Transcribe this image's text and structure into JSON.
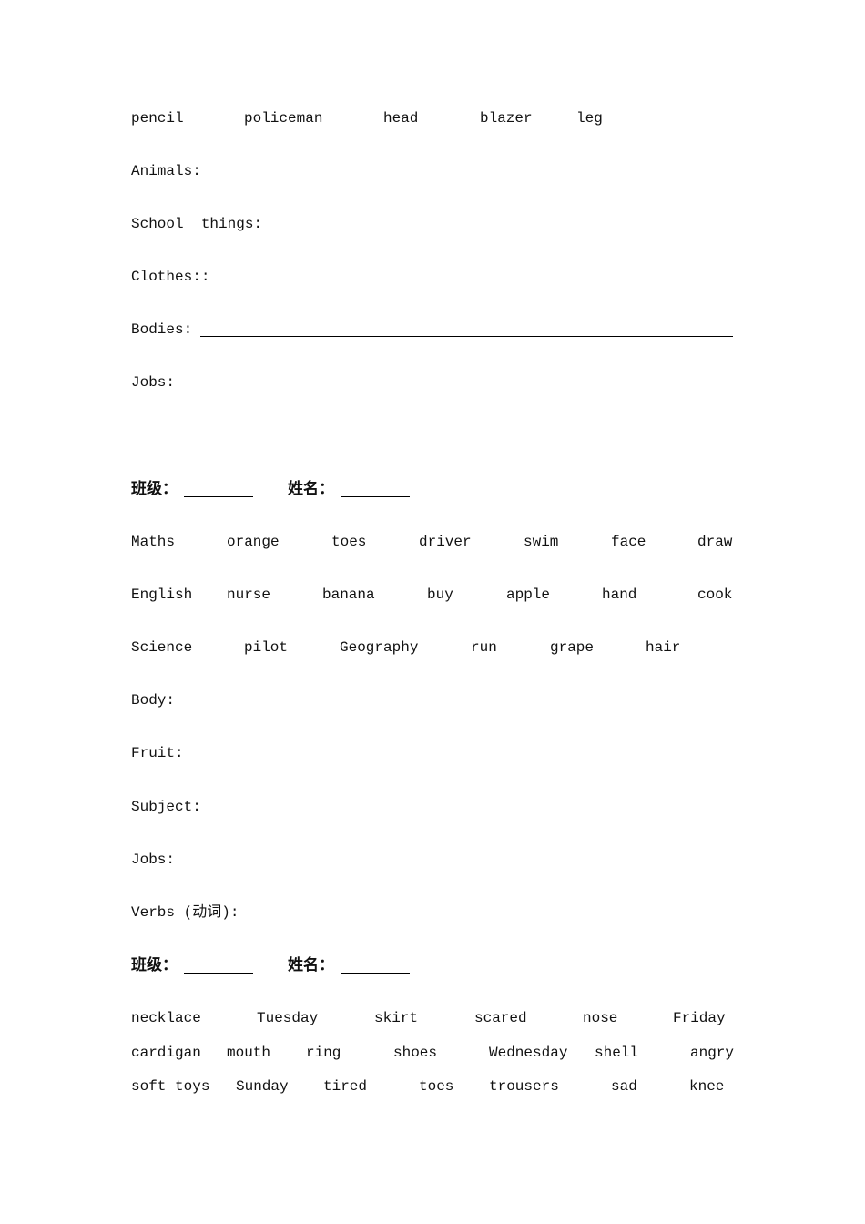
{
  "section1": {
    "words": [
      "pencil",
      "policeman",
      "head",
      "blazer",
      "leg"
    ],
    "categories": [
      "Animals:",
      "School  things:",
      "Clothes::",
      "Bodies:",
      "Jobs:"
    ]
  },
  "section2": {
    "class_label": "班级：",
    "name_label": "姓名：",
    "rows": [
      [
        "Maths",
        "orange",
        "toes",
        "driver",
        "swim",
        "face",
        "draw"
      ],
      [
        "English",
        "nurse",
        "banana",
        "buy",
        "apple",
        "hand",
        "cook"
      ],
      [
        "Science",
        "pilot",
        "Geography",
        "run",
        "grape",
        "hair"
      ]
    ],
    "categories": [
      "Body:",
      "Fruit:",
      "Subject:",
      "Jobs:",
      "Verbs (动词):"
    ]
  },
  "section3": {
    "class_label": "班级：",
    "name_label": "姓名：",
    "rows": [
      [
        "necklace",
        "Tuesday",
        "skirt",
        "scared",
        "nose",
        "Friday"
      ],
      [
        "cardigan",
        "mouth",
        "ring",
        "shoes",
        "Wednesday",
        "shell",
        "angry"
      ],
      [
        "soft toys",
        "Sunday",
        "tired",
        "toes",
        "trousers",
        "sad",
        "knee"
      ]
    ]
  }
}
